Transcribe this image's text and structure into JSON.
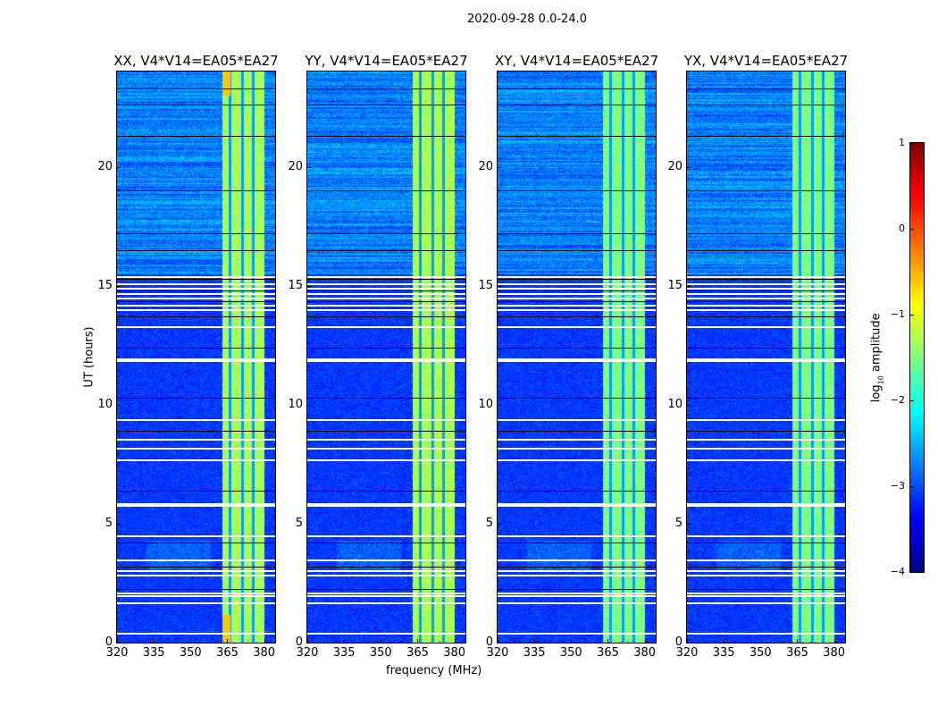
{
  "chart_data": {
    "type": "heatmap",
    "title": "2020-09-28 0.0-24.0",
    "ylabel": "UT (hours)",
    "xlabel": "frequency (MHz)",
    "xlim": [
      320,
      384.5
    ],
    "ylim": [
      0,
      24
    ],
    "xticks": [
      "320",
      "335",
      "350",
      "365",
      "380"
    ],
    "xtick_values": [
      320,
      335,
      350,
      365,
      380
    ],
    "yticks": [
      "0",
      "5",
      "10",
      "15",
      "20"
    ],
    "ytick_values": [
      0,
      5,
      10,
      15,
      20
    ],
    "panels": [
      {
        "title": "XX, V4*V14=EA05*EA27"
      },
      {
        "title": "YY, V4*V14=EA05*EA27"
      },
      {
        "title": "XY, V4*V14=EA05*EA27"
      },
      {
        "title": "YX, V4*V14=EA05*EA27"
      }
    ],
    "colorbar": {
      "label_main": "log",
      "label_sub": "10",
      "label_rest": " amplitude",
      "range": [
        -4,
        1
      ],
      "ticks": [
        "1",
        "0",
        "−1",
        "−2",
        "−3",
        "−4"
      ],
      "tick_values": [
        1,
        0,
        -1,
        -2,
        -3,
        -4
      ],
      "colormap": "jet"
    },
    "background_level": -3.1,
    "rfi_band_mhz": [
      363,
      380
    ],
    "rfi_band_level": -1.3,
    "rfi_band_gaps_mhz": [
      366,
      371,
      375.5
    ],
    "flagged_hours_white": [
      0.4,
      1.7,
      2.0,
      2.1,
      2.85,
      3.05,
      3.5,
      4.5,
      5.8,
      5.85,
      7.7,
      8.2,
      8.55,
      9.4,
      11.85,
      11.95,
      13.3,
      14.0,
      14.2,
      14.5,
      14.7,
      14.9,
      15.1,
      15.4
    ],
    "flagged_hours_black": [
      2.25,
      3.2,
      4.2,
      6.4,
      8.9,
      10.3,
      12.4,
      13.7,
      14.35,
      14.8,
      15.3,
      16.5,
      17.2,
      19.0,
      21.3,
      22.6,
      23.3
    ]
  }
}
